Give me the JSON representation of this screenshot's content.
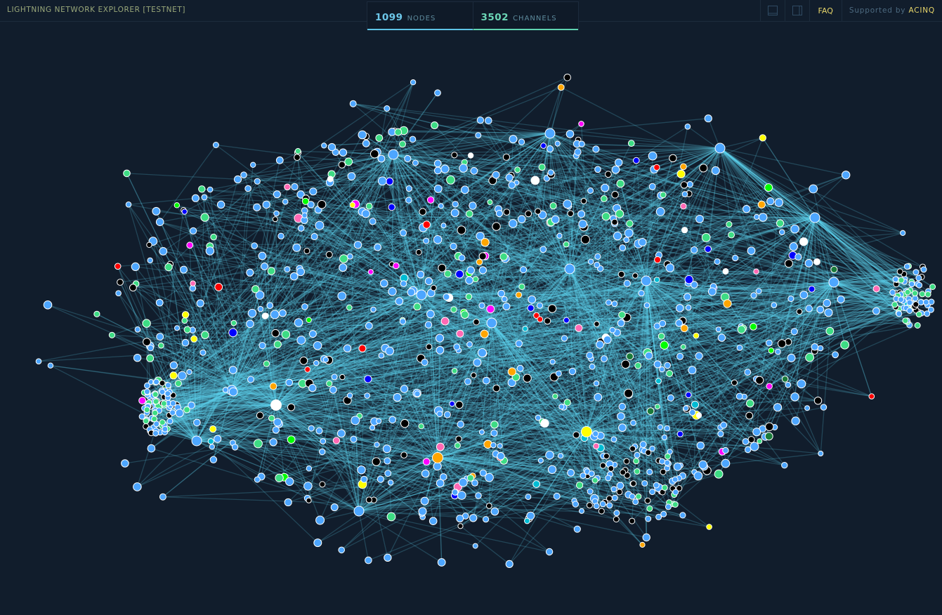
{
  "header": {
    "title": "LIGHTNING NETWORK EXPLORER [TESTNET]",
    "stats": {
      "nodes_count": "1099",
      "nodes_label": "NODES",
      "channels_count": "3502",
      "channels_label": "CHANNELS"
    },
    "icons": [
      "single-pane-icon",
      "split-pane-icon"
    ],
    "faq_label": "FAQ",
    "supported_by_label": "Supported by",
    "supported_by_brand": "ACINQ"
  },
  "graph": {
    "edge_color": "#5fd8f0",
    "background": "#111d2c",
    "node_colors": [
      "#4da6ff",
      "#000000",
      "#3ddc84",
      "#00ff00",
      "#ff0000",
      "#ffff00",
      "#ff00ff",
      "#ffa500",
      "#0000ff",
      "#ff69b4",
      "#1a7a3a",
      "#ffffff",
      "#00bcd4"
    ]
  }
}
